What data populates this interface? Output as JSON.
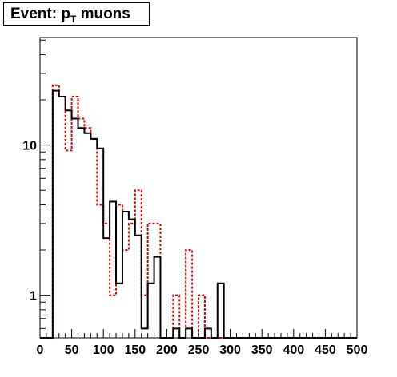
{
  "title": {
    "prefix": "Event: p",
    "subscript": "T",
    "suffix": " muons"
  },
  "chart_data": {
    "type": "histogram",
    "xlim": [
      0,
      500
    ],
    "ylim": [
      0.52,
      52
    ],
    "yscale": "log",
    "bin_width": 10,
    "x_ticks": [
      0,
      50,
      100,
      150,
      200,
      250,
      300,
      350,
      400,
      450,
      500
    ],
    "y_tick_labels": [
      {
        "value": 1,
        "label": "1"
      },
      {
        "value": 10,
        "label": "10"
      }
    ],
    "series": [
      {
        "color": "#000000",
        "style": "solid",
        "values": [
          0,
          0,
          23,
          21,
          17,
          15,
          13,
          12,
          11,
          9.5,
          2.4,
          4.2,
          1.2,
          3.6,
          3.2,
          2.5,
          0.6,
          1.2,
          1.8,
          0,
          0,
          0.6,
          0,
          0.6,
          0,
          0,
          0.6,
          0,
          1.2,
          0,
          0,
          0,
          0,
          0,
          0,
          0,
          0,
          0,
          0,
          0,
          0,
          0,
          0,
          0,
          0,
          0,
          0,
          0,
          0,
          0
        ]
      },
      {
        "color": "#dd0000",
        "style": "dashed",
        "values": [
          0,
          0,
          25,
          21,
          9.2,
          21,
          15,
          13,
          11,
          4,
          3,
          1,
          4,
          2,
          3,
          5,
          1,
          3,
          3,
          0,
          0,
          1,
          0,
          2,
          0,
          1,
          0,
          0,
          0,
          0,
          0,
          0,
          0,
          0,
          0,
          0,
          0,
          0,
          0,
          0,
          0,
          0,
          0,
          0,
          0,
          0,
          0,
          0,
          0,
          0
        ]
      }
    ]
  }
}
